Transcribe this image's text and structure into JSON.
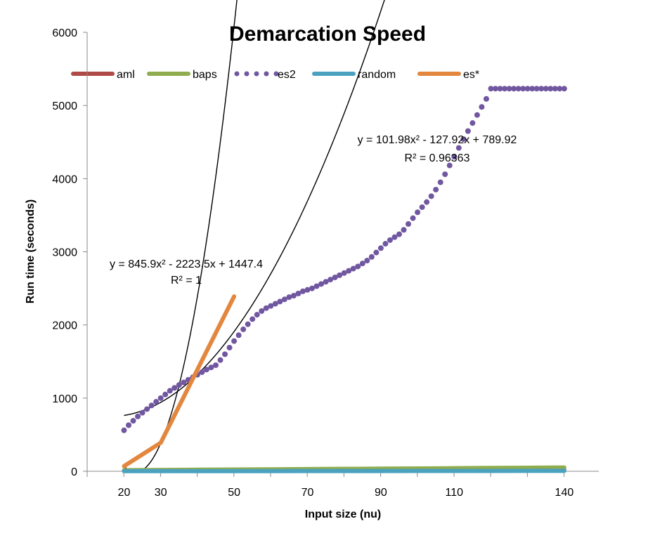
{
  "chart_data": {
    "type": "line",
    "title": "Demarcation Speed",
    "xlabel": "Input size (nu)",
    "ylabel": "Run time (seconds)",
    "categories": [
      20,
      30,
      40,
      50,
      60,
      70,
      80,
      90,
      100,
      110,
      120,
      130,
      140
    ],
    "x_tick_labels": [
      "20",
      "30",
      "50",
      "70",
      "90",
      "110",
      "140"
    ],
    "ylim": [
      0,
      6000
    ],
    "y_ticks": [
      0,
      1000,
      2000,
      3000,
      4000,
      5000,
      6000
    ],
    "y_tick_labels": [
      "0",
      "1000",
      "2000",
      "3000",
      "4000",
      "5000",
      "6000"
    ],
    "legend_position": "top",
    "grid": false,
    "series": [
      {
        "name": "aml",
        "color": "#b04a47",
        "style": "thick-solid",
        "values": [
          5,
          6,
          7,
          8,
          9,
          10,
          11,
          12,
          13,
          14,
          15,
          16,
          17
        ]
      },
      {
        "name": "baps",
        "color": "#8fad4f",
        "style": "thick-solid",
        "values": [
          15,
          18,
          21,
          24,
          27,
          30,
          33,
          36,
          39,
          42,
          45,
          48,
          52
        ]
      },
      {
        "name": "es2",
        "color": "#7057a0",
        "style": "dotted",
        "x": [
          20,
          21.25,
          22.5,
          23.75,
          25,
          26.25,
          27.5,
          28.75,
          30,
          31.25,
          32.5,
          33.75,
          35,
          36.25,
          37.5,
          38.75,
          40,
          41.25,
          42.5,
          43.75,
          45,
          46.25,
          47.5,
          48.75,
          50,
          51.25,
          52.5,
          53.75,
          55,
          56.25,
          57.5,
          58.75,
          60,
          61.25,
          62.5,
          63.75,
          65,
          66.25,
          67.5,
          68.75,
          70,
          71.25,
          72.5,
          73.75,
          75,
          76.25,
          77.5,
          78.75,
          80,
          81.25,
          82.5,
          83.75,
          85,
          86.25,
          87.5,
          88.75,
          90,
          91.25,
          92.5,
          93.75,
          95,
          96.25,
          97.5,
          98.75,
          100,
          101.25,
          102.5,
          103.75,
          105,
          106.25,
          107.5,
          108.75,
          110,
          111.25,
          112.5,
          113.75,
          115,
          116.25,
          117.5,
          118.75,
          120,
          121.25,
          122.5,
          123.75,
          125,
          126.25,
          127.5,
          128.75,
          130,
          131.25,
          132.5,
          133.75,
          135,
          136.25,
          137.5,
          138.75,
          140
        ],
        "values": [
          560,
          630,
          690,
          750,
          800,
          850,
          900,
          950,
          1000,
          1050,
          1100,
          1140,
          1180,
          1215,
          1250,
          1285,
          1320,
          1355,
          1390,
          1420,
          1450,
          1520,
          1600,
          1690,
          1780,
          1860,
          1940,
          2010,
          2080,
          2140,
          2190,
          2230,
          2260,
          2290,
          2320,
          2350,
          2380,
          2400,
          2430,
          2460,
          2480,
          2500,
          2530,
          2560,
          2590,
          2620,
          2650,
          2680,
          2710,
          2740,
          2770,
          2800,
          2840,
          2880,
          2930,
          2990,
          3050,
          3110,
          3160,
          3200,
          3240,
          3300,
          3380,
          3460,
          3540,
          3610,
          3680,
          3760,
          3850,
          3950,
          4060,
          4180,
          4300,
          4420,
          4540,
          4650,
          4760,
          4870,
          4980,
          5090,
          5230,
          5230,
          5230,
          5230,
          5230,
          5230,
          5230,
          5230,
          5230,
          5230,
          5230,
          5230,
          5230,
          5230,
          5230,
          5230,
          5230
        ]
      },
      {
        "name": "random",
        "color": "#4aa2bf",
        "style": "thick-solid",
        "values": [
          2,
          2,
          3,
          3,
          3,
          4,
          4,
          4,
          5,
          5,
          5,
          6,
          6
        ]
      },
      {
        "name": "es*",
        "color": "#e3873f",
        "style": "thick-solid",
        "x": [
          20,
          30,
          50
        ],
        "values": [
          70,
          390,
          2390
        ]
      }
    ],
    "trendlines": [
      {
        "for": "es2",
        "equation": "y = 101.98x² - 127.92x + 789.92",
        "r2": "R² = 0.96363"
      },
      {
        "for": "es*",
        "equation": "y = 845.9x² - 2223.5x + 1447.4",
        "r2": "R² = 1"
      }
    ]
  }
}
